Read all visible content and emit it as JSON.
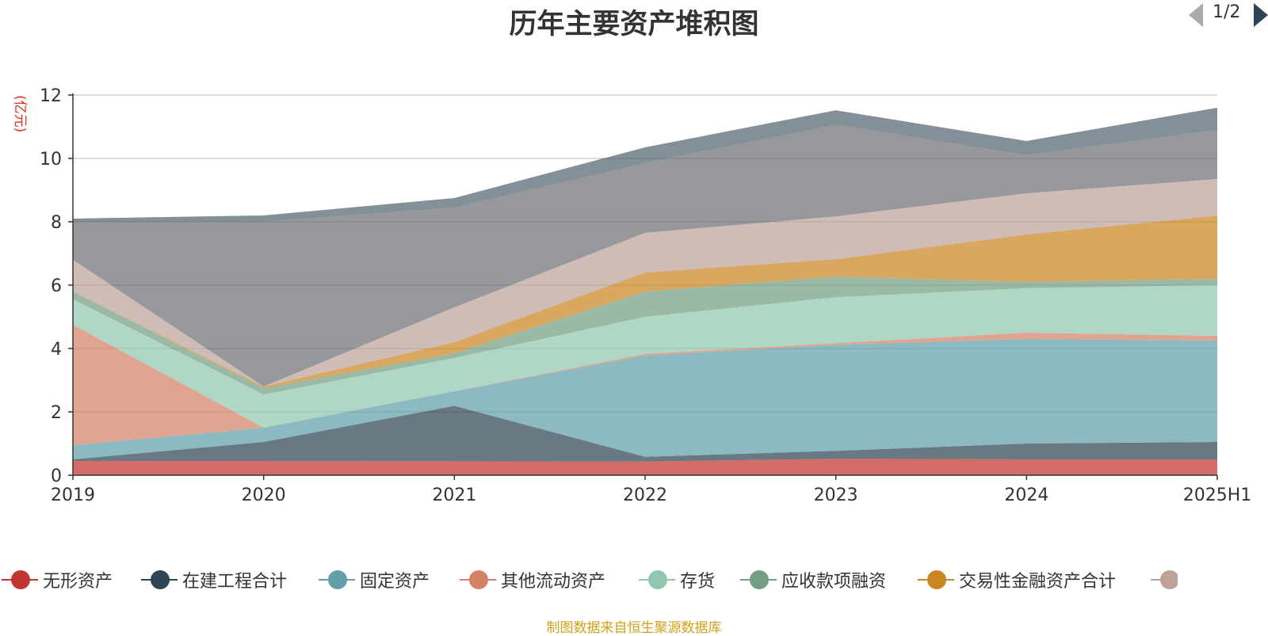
{
  "chart_data": {
    "type": "area",
    "title": "历年主要资产堆积图",
    "ylabel": "(亿元)",
    "xlabel": "",
    "ylim": [
      0,
      12
    ],
    "yticks": [
      "0",
      "2",
      "4",
      "6",
      "8",
      "10",
      "12"
    ],
    "categories": [
      "2019",
      "2020",
      "2021",
      "2022",
      "2023",
      "2024",
      "2025H1"
    ],
    "stacked": true,
    "grid": true,
    "legend_position": "bottom",
    "series": [
      {
        "name": "无形资产",
        "color": "#c23531",
        "values": [
          0.45,
          0.45,
          0.44,
          0.43,
          0.52,
          0.5,
          0.5
        ]
      },
      {
        "name": "在建工程合计",
        "color": "#2f4554",
        "values": [
          0.05,
          0.6,
          1.75,
          0.15,
          0.25,
          0.5,
          0.55
        ]
      },
      {
        "name": "固定资产",
        "color": "#61a0a8",
        "values": [
          0.45,
          0.45,
          0.46,
          3.2,
          3.35,
          3.3,
          3.2
        ]
      },
      {
        "name": "其他流动资产",
        "color": "#d48265",
        "values": [
          3.8,
          0.0,
          0.0,
          0.05,
          0.05,
          0.2,
          0.15
        ]
      },
      {
        "name": "存货",
        "color": "#91c7ae",
        "values": [
          0.8,
          1.05,
          1.05,
          1.17,
          1.45,
          1.4,
          1.6
        ]
      },
      {
        "name": "应收款项融资",
        "color": "#749f83",
        "values": [
          0.25,
          0.2,
          0.15,
          0.8,
          0.65,
          0.2,
          0.2
        ]
      },
      {
        "name": "交易性金融资产合计",
        "color": "#ca8622",
        "values": [
          0.0,
          0.05,
          0.35,
          0.6,
          0.55,
          1.5,
          2.0
        ]
      },
      {
        "name": "",
        "color": "#bda29a",
        "values": [
          1.0,
          0.0,
          1.1,
          1.25,
          1.35,
          1.3,
          1.15
        ]
      },
      {
        "name": "",
        "color": "#6e7074",
        "values": [
          1.2,
          5.2,
          3.15,
          2.2,
          2.9,
          1.2,
          1.55
        ]
      },
      {
        "name": "",
        "color": "#546570",
        "values": [
          0.1,
          0.2,
          0.3,
          0.5,
          0.45,
          0.45,
          0.7
        ]
      }
    ]
  },
  "legend": {
    "page": "1/2",
    "visible_items": 8
  },
  "footer": {
    "source": "制图数据来自恒生聚源数据库"
  }
}
